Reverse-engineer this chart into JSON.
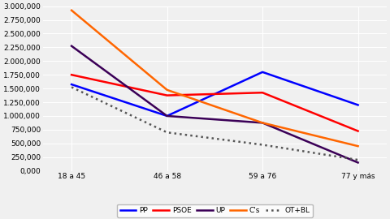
{
  "categories": [
    "18 a 45",
    "46 a 58",
    "59 a 76",
    "77 y más"
  ],
  "series": {
    "PP": [
      1575000,
      1000000,
      1800000,
      1200000
    ],
    "PSOE": [
      1750000,
      1375000,
      1425000,
      725000
    ],
    "UP": [
      2275000,
      1000000,
      875000,
      150000
    ],
    "C's": [
      2925000,
      1475000,
      875000,
      450000
    ],
    "OT+BL": [
      1525000,
      700000,
      475000,
      200000
    ]
  },
  "colors": {
    "PP": "#0000FF",
    "PSOE": "#FF0000",
    "UP": "#3B0057",
    "C's": "#FF6600",
    "OT+BL": "#555555"
  },
  "linestyles": {
    "PP": "-",
    "PSOE": "-",
    "UP": "-",
    "C's": "-",
    "OT+BL": ":"
  },
  "ylim": [
    0,
    3000000
  ],
  "ytick_step": 250000,
  "background_color": "#F0F0F0",
  "grid_color": "#FFFFFF",
  "legend_order": [
    "PP",
    "PSOE",
    "UP",
    "C's",
    "OT+BL"
  ]
}
